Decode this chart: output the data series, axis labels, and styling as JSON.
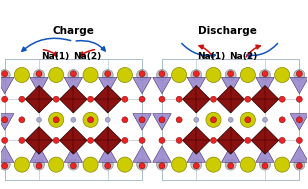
{
  "figsize": [
    3.08,
    1.89
  ],
  "dpi": 100,
  "bg_color": "white",
  "left_title": "Charge",
  "right_title": "Discharge",
  "na_label1": "Na(1)",
  "na_label2": "Na(2)",
  "title_fontsize": 7.5,
  "na_fontsize": 6.5,
  "arrow_blue_color": "#1155bb",
  "arrow_red_color": "#cc1111",
  "frame_color": "#aabbcc",
  "dark_red_color": "#8B1010",
  "purple_color": "#9988cc",
  "red_atom_color": "#ee2222",
  "yellow_atom_color": "#cccc00",
  "gray_atom_color": "#c0c0c0",
  "blue_atom_color": "#aaaacc"
}
